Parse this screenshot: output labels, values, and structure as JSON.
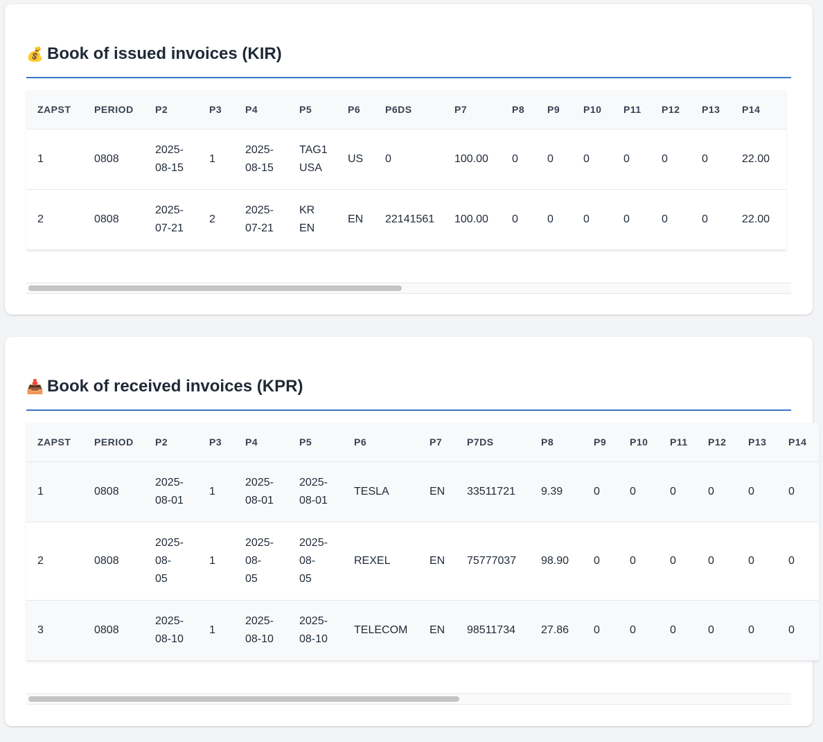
{
  "kir": {
    "icon": "money-bag-icon",
    "title": "Book of issued invoices (KIR)",
    "columns": [
      "ZAPST",
      "PERIOD",
      "P2",
      "P3",
      "P4",
      "P5",
      "P6",
      "P6DS",
      "P7",
      "P8",
      "P9",
      "P10",
      "P11",
      "P12",
      "P13",
      "P14"
    ],
    "rows": [
      [
        "1",
        "0808",
        "2025-\n08-15",
        "1",
        "2025-\n08-15",
        "TAG1\nUSA",
        "US",
        "0",
        "100.00",
        "0",
        "0",
        "0",
        "0",
        "0",
        "0",
        "22.00"
      ],
      [
        "2",
        "0808",
        "2025-\n07-21",
        "2",
        "2025-\n07-21",
        "KR\nEN",
        "EN",
        "22141561",
        "100.00",
        "0",
        "0",
        "0",
        "0",
        "0",
        "0",
        "22.00"
      ]
    ]
  },
  "kpr": {
    "icon": "inbox-tray-icon",
    "title": "Book of received invoices (KPR)",
    "columns": [
      "ZAPST",
      "PERIOD",
      "P2",
      "P3",
      "P4",
      "P5",
      "P6",
      "P7",
      "P7DS",
      "P8",
      "P9",
      "P10",
      "P11",
      "P12",
      "P13",
      "P14"
    ],
    "rows": [
      [
        "1",
        "0808",
        "2025-\n08-01",
        "1",
        "2025-\n08-01",
        "2025-\n08-01",
        "TESLA",
        "EN",
        "33511721",
        "9.39",
        "0",
        "0",
        "0",
        "0",
        "0",
        "0"
      ],
      [
        "2",
        "0808",
        "2025-\n08-\n05",
        "1",
        "2025-\n08-\n05",
        "2025-\n08-\n05",
        "REXEL",
        "EN",
        "75777037",
        "98.90",
        "0",
        "0",
        "0",
        "0",
        "0",
        "0"
      ],
      [
        "3",
        "0808",
        "2025-\n08-10",
        "1",
        "2025-\n08-10",
        "2025-\n08-10",
        "TELECOM",
        "EN",
        "98511734",
        "27.86",
        "0",
        "0",
        "0",
        "0",
        "0",
        "0"
      ]
    ]
  }
}
